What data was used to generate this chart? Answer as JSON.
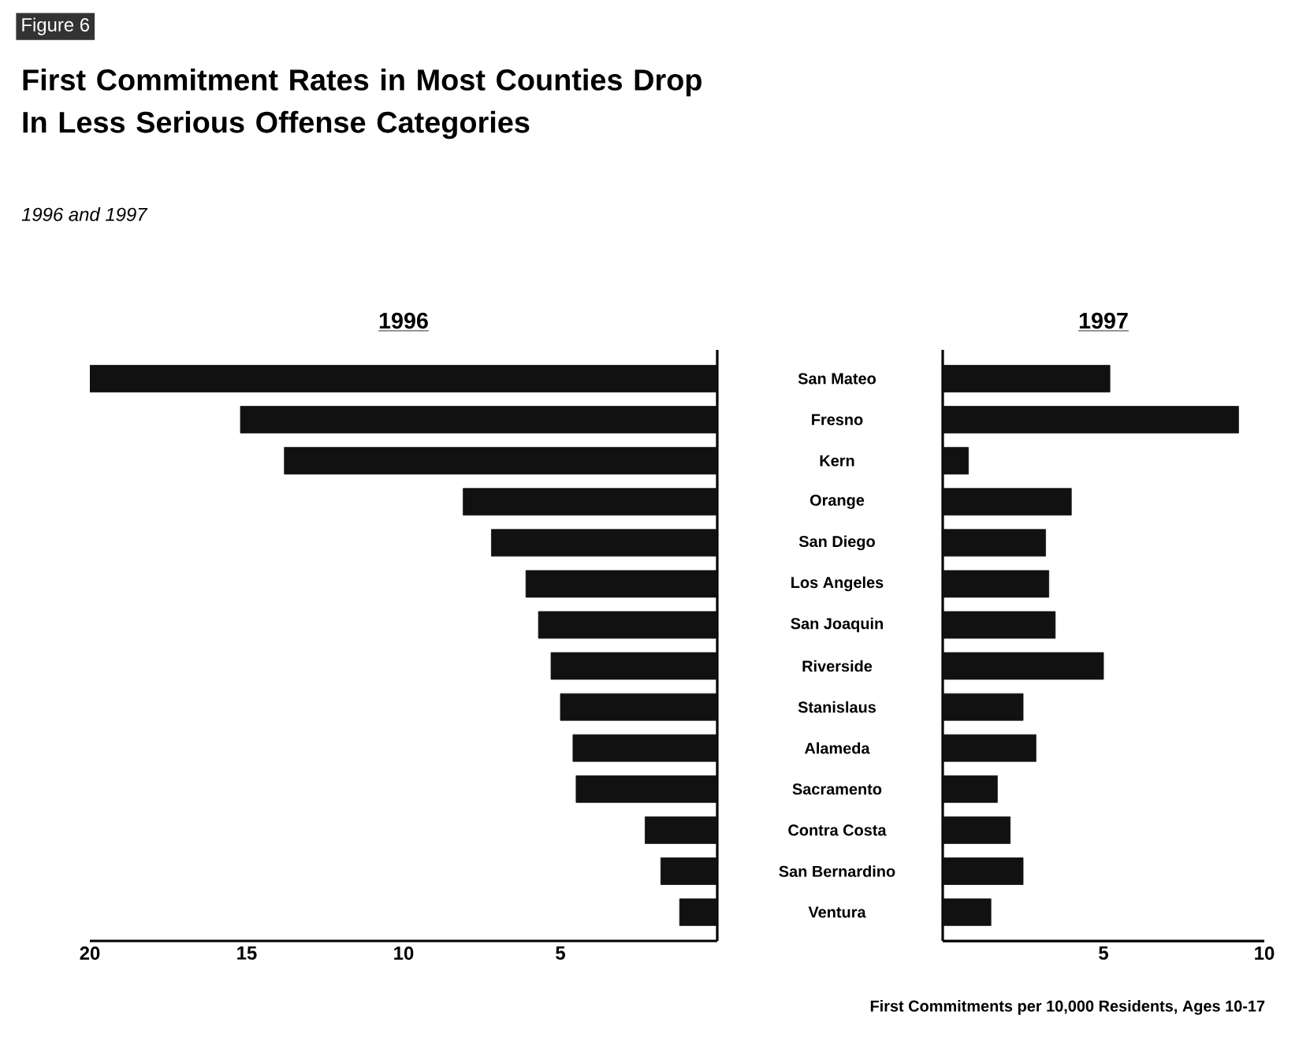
{
  "chart_data": [
    {
      "type": "bar",
      "orientation": "horizontal",
      "title": "1996",
      "categories": [
        "San Mateo",
        "Fresno",
        "Kern",
        "Orange",
        "San Diego",
        "Los Angeles",
        "San Joaquin",
        "Riverside",
        "Stanislaus",
        "Alameda",
        "Sacramento",
        "Contra Costa",
        "San Bernardino",
        "Ventura"
      ],
      "values": [
        20,
        15.2,
        13.8,
        8.1,
        7.2,
        6.1,
        5.7,
        5.3,
        5.0,
        4.6,
        4.5,
        2.3,
        1.8,
        1.2
      ],
      "color": "#111111",
      "xlim": [
        20,
        0
      ],
      "xticks": [
        20,
        15,
        10,
        5
      ],
      "annotations": [
        "Figure 6",
        "First Commitment Rates in Most Counties Drop In Less Serious Offense Categories",
        "1996 and 1997"
      ]
    },
    {
      "type": "bar",
      "orientation": "horizontal",
      "title": "1997",
      "categories": [
        null,
        null,
        null,
        null,
        null,
        null,
        null,
        null,
        null,
        null,
        null,
        null,
        null,
        null
      ],
      "values": [
        5.2,
        9.2,
        0.8,
        4.0,
        3.2,
        3.3,
        3.5,
        5.0,
        2.5,
        2.9,
        1.7,
        2.1,
        2.5,
        1.5
      ],
      "color": "#111111",
      "xlim": [
        0,
        10
      ],
      "xticks": [
        5,
        10
      ],
      "xlabel": "First Commitments per 10,000 Residents, Ages 10-17"
    }
  ]
}
